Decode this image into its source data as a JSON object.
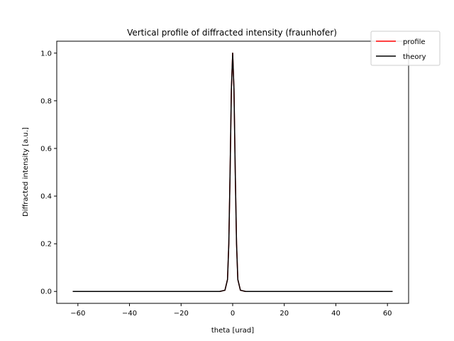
{
  "chart_data": {
    "type": "line",
    "title": "Vertical profile of diffracted intensity (fraunhofer)",
    "xlabel": "theta [urad]",
    "ylabel": "Diffracted intensity [a.u.]",
    "xlim": [
      -68.2,
      68.2
    ],
    "ylim": [
      -0.05,
      1.05
    ],
    "xticks": [
      -60,
      -40,
      -20,
      0,
      20,
      40,
      60
    ],
    "xtick_labels": [
      "−60",
      "−40",
      "−20",
      "0",
      "20",
      "40",
      "60"
    ],
    "yticks": [
      0.0,
      0.2,
      0.4,
      0.6,
      0.8,
      1.0
    ],
    "ytick_labels": [
      "0.0",
      "0.2",
      "0.4",
      "0.6",
      "0.8",
      "1.0"
    ],
    "grid": false,
    "legend_position": "top-right",
    "series": [
      {
        "name": "profile",
        "color": "#ff0000",
        "x": [
          -62,
          -40,
          -20,
          -10,
          -5,
          -3,
          -2,
          -1.5,
          -1,
          -0.5,
          0,
          0.5,
          1,
          1.5,
          2,
          3,
          5,
          10,
          20,
          40,
          62
        ],
        "y": [
          0,
          0,
          0,
          0,
          0,
          0.005,
          0.05,
          0.2,
          0.5,
          0.85,
          1.0,
          0.85,
          0.5,
          0.2,
          0.05,
          0.005,
          0,
          0,
          0,
          0,
          0
        ]
      },
      {
        "name": "theory",
        "color": "#000000",
        "x": [
          -62,
          -40,
          -20,
          -10,
          -5,
          -3,
          -2,
          -1.5,
          -1,
          -0.5,
          0,
          0.5,
          1,
          1.5,
          2,
          3,
          5,
          10,
          20,
          40,
          62
        ],
        "y": [
          0,
          0,
          0,
          0,
          0,
          0.005,
          0.05,
          0.2,
          0.5,
          0.85,
          1.0,
          0.85,
          0.5,
          0.2,
          0.05,
          0.005,
          0,
          0,
          0,
          0,
          0
        ]
      }
    ]
  }
}
